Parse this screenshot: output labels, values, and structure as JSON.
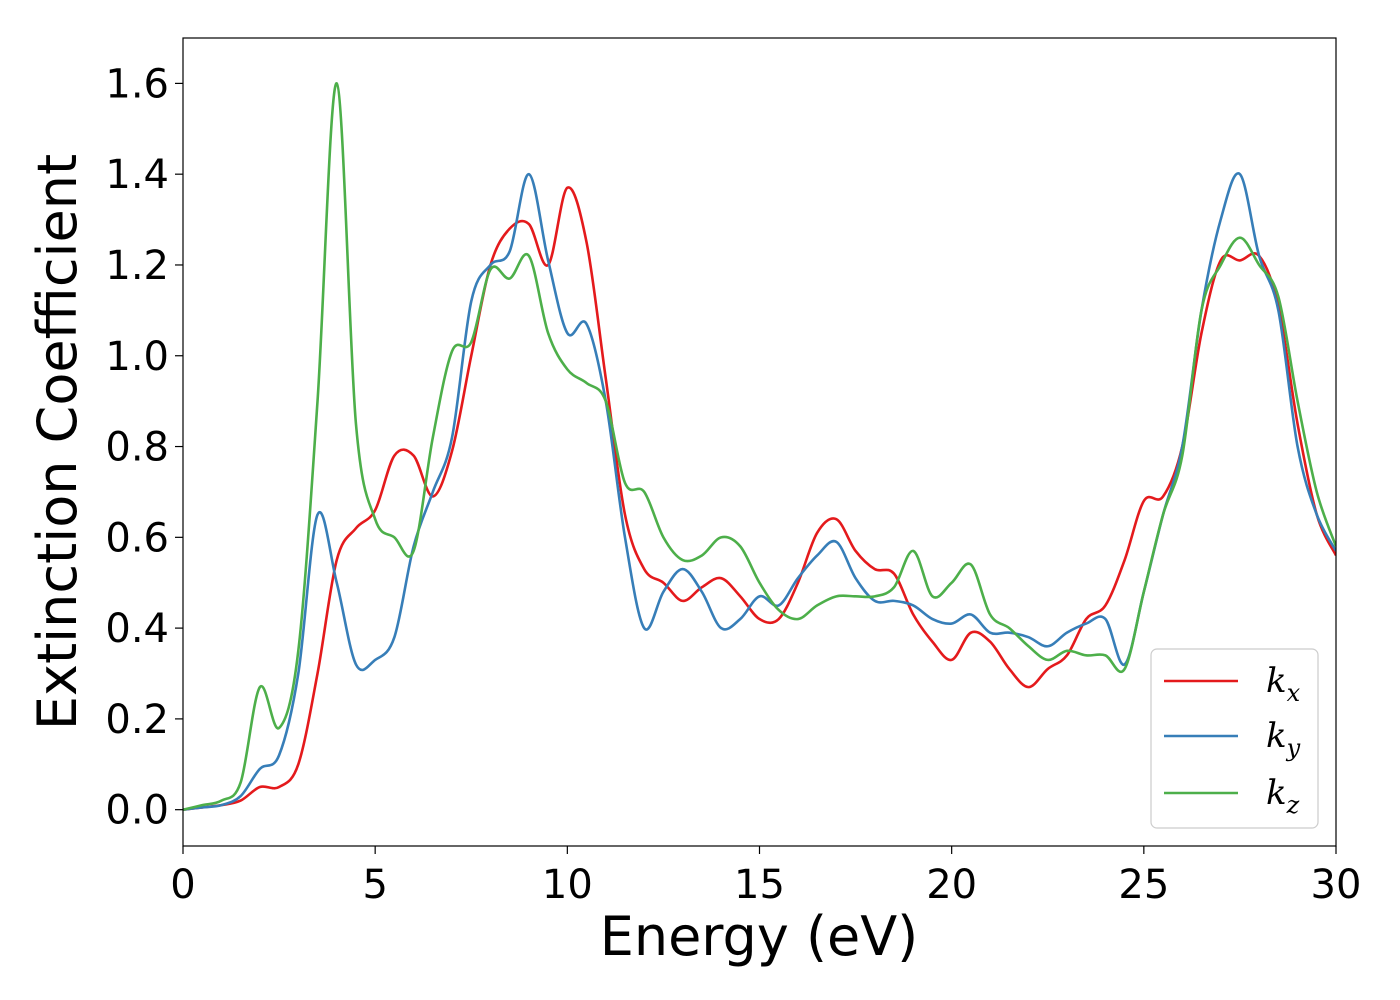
{
  "chart_data": {
    "type": "line",
    "title": "",
    "xlabel": "Energy (eV)",
    "ylabel": "Extinction Coefficient",
    "xlim": [
      0,
      30
    ],
    "ylim": [
      -0.08,
      1.7
    ],
    "xticks": [
      0,
      5,
      10,
      15,
      20,
      25,
      30
    ],
    "yticks": [
      "0.0",
      "0.2",
      "0.4",
      "0.6",
      "0.8",
      "1.0",
      "1.2",
      "1.4",
      "1.6"
    ],
    "grid": false,
    "legend_position": "bottom-right",
    "x": [
      0,
      0.5,
      1.0,
      1.5,
      2.0,
      2.5,
      3.0,
      3.5,
      4.0,
      4.5,
      5.0,
      5.5,
      6.0,
      6.5,
      7.0,
      7.5,
      8.0,
      8.5,
      9.0,
      9.5,
      10.0,
      10.5,
      11.0,
      11.5,
      12.0,
      12.5,
      13.0,
      13.5,
      14.0,
      14.5,
      15.0,
      15.5,
      16.0,
      16.5,
      17.0,
      17.5,
      18.0,
      18.5,
      19.0,
      19.5,
      20.0,
      20.5,
      21.0,
      21.5,
      22.0,
      22.5,
      23.0,
      23.5,
      24.0,
      24.5,
      25.0,
      25.5,
      26.0,
      26.5,
      27.0,
      27.5,
      28.0,
      28.5,
      29.0,
      29.5,
      30.0
    ],
    "series": [
      {
        "name": "k",
        "sub": "x",
        "color": "#e41a1c",
        "values": [
          0.0,
          0.005,
          0.01,
          0.02,
          0.05,
          0.05,
          0.1,
          0.3,
          0.55,
          0.62,
          0.66,
          0.78,
          0.78,
          0.69,
          0.79,
          1.0,
          1.2,
          1.28,
          1.29,
          1.2,
          1.37,
          1.25,
          0.95,
          0.65,
          0.53,
          0.5,
          0.46,
          0.49,
          0.51,
          0.47,
          0.42,
          0.42,
          0.5,
          0.61,
          0.64,
          0.57,
          0.53,
          0.52,
          0.43,
          0.37,
          0.33,
          0.39,
          0.37,
          0.31,
          0.27,
          0.31,
          0.34,
          0.42,
          0.45,
          0.55,
          0.68,
          0.69,
          0.8,
          1.05,
          1.21,
          1.21,
          1.22,
          1.11,
          0.85,
          0.65,
          0.56
        ]
      },
      {
        "name": "k",
        "sub": "y",
        "color": "#377eb8",
        "values": [
          0.0,
          0.005,
          0.01,
          0.03,
          0.09,
          0.12,
          0.3,
          0.65,
          0.5,
          0.32,
          0.33,
          0.38,
          0.58,
          0.7,
          0.82,
          1.12,
          1.2,
          1.23,
          1.4,
          1.21,
          1.05,
          1.07,
          0.9,
          0.6,
          0.4,
          0.48,
          0.53,
          0.48,
          0.4,
          0.42,
          0.47,
          0.45,
          0.51,
          0.56,
          0.59,
          0.51,
          0.46,
          0.46,
          0.45,
          0.42,
          0.41,
          0.43,
          0.39,
          0.39,
          0.38,
          0.36,
          0.39,
          0.41,
          0.42,
          0.32,
          0.48,
          0.65,
          0.8,
          1.1,
          1.3,
          1.4,
          1.22,
          1.1,
          0.8,
          0.65,
          0.57
        ]
      },
      {
        "name": "k",
        "sub": "z",
        "color": "#4daf4a",
        "values": [
          0.0,
          0.01,
          0.02,
          0.06,
          0.27,
          0.18,
          0.35,
          0.9,
          1.6,
          0.85,
          0.64,
          0.6,
          0.57,
          0.82,
          1.01,
          1.03,
          1.19,
          1.17,
          1.22,
          1.05,
          0.97,
          0.94,
          0.9,
          0.72,
          0.7,
          0.6,
          0.55,
          0.56,
          0.6,
          0.58,
          0.5,
          0.44,
          0.42,
          0.45,
          0.47,
          0.47,
          0.47,
          0.49,
          0.57,
          0.47,
          0.5,
          0.54,
          0.43,
          0.4,
          0.36,
          0.33,
          0.35,
          0.34,
          0.34,
          0.31,
          0.48,
          0.65,
          0.78,
          1.1,
          1.2,
          1.26,
          1.2,
          1.13,
          0.9,
          0.7,
          0.58
        ]
      }
    ]
  }
}
